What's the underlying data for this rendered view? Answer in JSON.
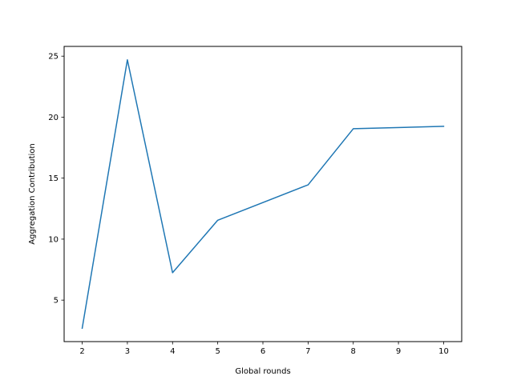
{
  "chart_data": {
    "type": "line",
    "title": "",
    "xlabel": "Global rounds",
    "ylabel": "Aggregation Contribution",
    "xlim": [
      1.6,
      10.4
    ],
    "ylim": [
      1.6,
      25.8
    ],
    "xticks": [
      2,
      3,
      4,
      5,
      6,
      7,
      8,
      9,
      10
    ],
    "yticks": [
      5,
      10,
      15,
      20,
      25
    ],
    "grid": false,
    "legend": "none",
    "series": [
      {
        "color": "#1f77b4",
        "x": [
          2,
          3,
          4,
          5,
          7,
          8,
          10
        ],
        "y": [
          2.7,
          24.7,
          7.25,
          11.55,
          14.45,
          19.05,
          19.25
        ]
      }
    ]
  }
}
